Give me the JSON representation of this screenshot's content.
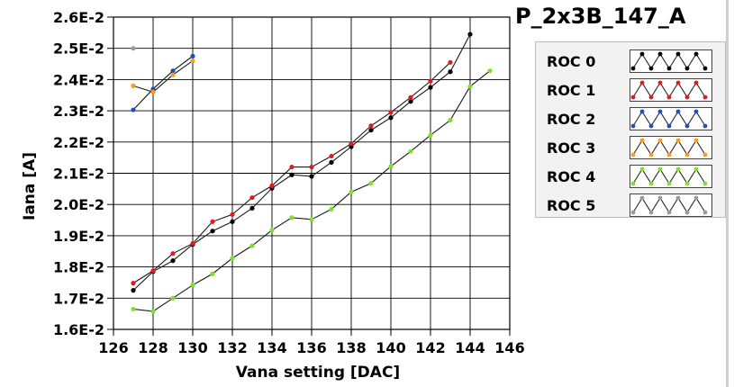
{
  "plot_title": "P_2x3B_147_A",
  "legend": [
    {
      "label": "ROC 0",
      "color": "#000000"
    },
    {
      "label": "ROC 1",
      "color": "#e31a1c"
    },
    {
      "label": "ROC 2",
      "color": "#1f4fbf"
    },
    {
      "label": "ROC 3",
      "color": "#ff9a1a"
    },
    {
      "label": "ROC 4",
      "color": "#7fe02a"
    },
    {
      "label": "ROC 5",
      "color": "#9a9a9a"
    }
  ],
  "chart_data": {
    "type": "line",
    "title": "P_2x3B_147_A",
    "xlabel": "Vana setting [DAC]",
    "ylabel": "Iana [A]",
    "xlim": [
      126,
      146
    ],
    "ylim": [
      0.016,
      0.026
    ],
    "x_ticks": [
      "126",
      "128",
      "130",
      "132",
      "134",
      "136",
      "138",
      "140",
      "142",
      "144",
      "146"
    ],
    "y_ticks": [
      "1.6E-2",
      "1.7E-2",
      "1.8E-2",
      "1.9E-2",
      "2.0E-2",
      "2.1E-2",
      "2.2E-2",
      "2.3E-2",
      "2.4E-2",
      "2.5E-2",
      "2.6E-2"
    ],
    "grid": true,
    "legend_position": "right",
    "series": [
      {
        "name": "ROC 0",
        "color": "#000000",
        "x": [
          127,
          128,
          129,
          130,
          131,
          132,
          133,
          134,
          135,
          136,
          137,
          138,
          139,
          140,
          141,
          142,
          143,
          144
        ],
        "y": [
          0.01725,
          0.01785,
          0.0182,
          0.01872,
          0.01915,
          0.01945,
          0.01988,
          0.02052,
          0.02095,
          0.0209,
          0.02135,
          0.02185,
          0.02238,
          0.02278,
          0.0233,
          0.02375,
          0.02425,
          0.02545
        ]
      },
      {
        "name": "ROC 1",
        "color": "#e31a1c",
        "x": [
          127,
          128,
          129,
          130,
          131,
          132,
          133,
          134,
          135,
          136,
          137,
          138,
          139,
          140,
          141,
          142,
          143
        ],
        "y": [
          0.01748,
          0.01788,
          0.01843,
          0.01875,
          0.01945,
          0.01968,
          0.02022,
          0.0206,
          0.0212,
          0.0212,
          0.02155,
          0.02195,
          0.02252,
          0.02295,
          0.02343,
          0.02395,
          0.02455
        ]
      },
      {
        "name": "ROC 2",
        "color": "#1f4fbf",
        "x": [
          127,
          128,
          129,
          130
        ],
        "y": [
          0.02303,
          0.0237,
          0.02428,
          0.02475
        ]
      },
      {
        "name": "ROC 3",
        "color": "#ff9a1a",
        "x": [
          127,
          128,
          129,
          130
        ],
        "y": [
          0.0238,
          0.0236,
          0.02415,
          0.0246
        ]
      },
      {
        "name": "ROC 4",
        "color": "#7fe02a",
        "x": [
          127,
          128,
          129,
          130,
          131,
          132,
          133,
          134,
          135,
          136,
          137,
          138,
          139,
          140,
          141,
          142,
          143,
          144,
          145
        ],
        "y": [
          0.01665,
          0.01658,
          0.017,
          0.01742,
          0.01778,
          0.01828,
          0.01868,
          0.01918,
          0.01958,
          0.01952,
          0.01985,
          0.0204,
          0.02068,
          0.02122,
          0.0217,
          0.02222,
          0.0227,
          0.02378,
          0.02428
        ]
      },
      {
        "name": "ROC 5",
        "color": "#9a9a9a",
        "x": [
          127
        ],
        "y": [
          0.025
        ]
      }
    ]
  }
}
